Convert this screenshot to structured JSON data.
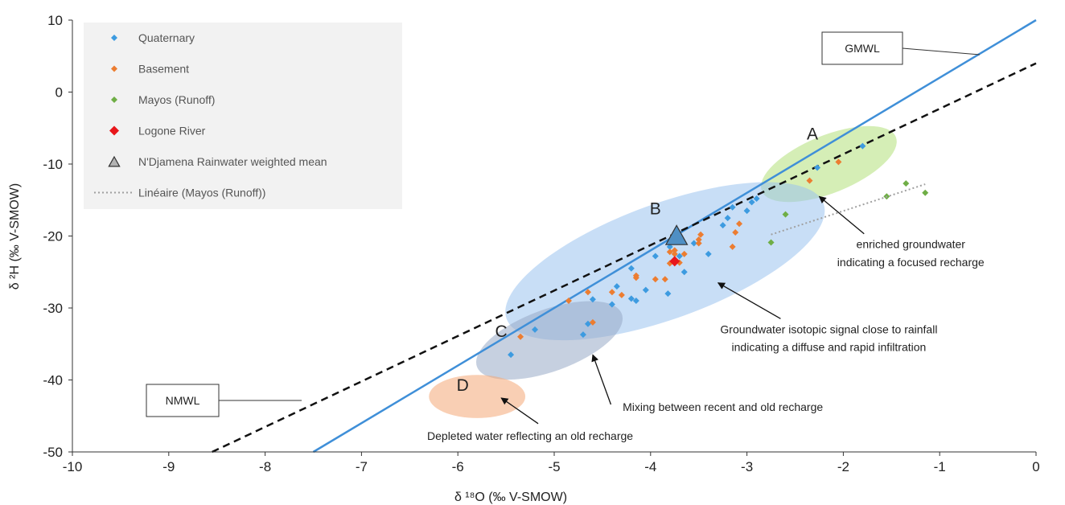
{
  "chart_data": {
    "type": "scatter",
    "title": "",
    "xlabel": "δ ¹⁸O (‰ V-SMOW)",
    "ylabel": "δ ²H (‰ V-SMOW)",
    "xlim": [
      -10,
      0
    ],
    "ylim": [
      -50,
      10
    ],
    "x_ticks": [
      "-10",
      "-9",
      "-8",
      "-7",
      "-6",
      "-5",
      "-4",
      "-3",
      "-2",
      "-1",
      "0"
    ],
    "y_ticks": [
      "10",
      "0",
      "-10",
      "-20",
      "-30",
      "-40",
      "-50"
    ],
    "grid": false,
    "legend_position": "top-left",
    "series": [
      {
        "name": "Quaternary",
        "color": "#3d9be0",
        "marker": "diamond",
        "points": [
          [
            -5.45,
            -36.5
          ],
          [
            -5.2,
            -33.0
          ],
          [
            -4.7,
            -33.7
          ],
          [
            -4.65,
            -32.2
          ],
          [
            -4.6,
            -28.8
          ],
          [
            -4.4,
            -29.5
          ],
          [
            -4.35,
            -27.0
          ],
          [
            -4.2,
            -28.7
          ],
          [
            -4.15,
            -29.0
          ],
          [
            -4.05,
            -27.5
          ],
          [
            -4.2,
            -24.5
          ],
          [
            -3.95,
            -22.8
          ],
          [
            -3.8,
            -21.5
          ],
          [
            -3.82,
            -28.0
          ],
          [
            -3.7,
            -22.8
          ],
          [
            -3.65,
            -25.0
          ],
          [
            -3.55,
            -21.0
          ],
          [
            -3.4,
            -22.5
          ],
          [
            -3.25,
            -18.5
          ],
          [
            -3.2,
            -17.5
          ],
          [
            -3.15,
            -16.0
          ],
          [
            -3.0,
            -16.5
          ],
          [
            -2.95,
            -15.3
          ],
          [
            -2.9,
            -14.8
          ],
          [
            -2.27,
            -10.5
          ],
          [
            -1.8,
            -7.5
          ]
        ]
      },
      {
        "name": "Basement",
        "color": "#ec7d31",
        "marker": "diamond",
        "points": [
          [
            -5.35,
            -34.0
          ],
          [
            -4.85,
            -29.0
          ],
          [
            -4.6,
            -32.0
          ],
          [
            -4.65,
            -27.8
          ],
          [
            -4.4,
            -27.8
          ],
          [
            -4.3,
            -28.2
          ],
          [
            -4.15,
            -25.8
          ],
          [
            -4.15,
            -25.5
          ],
          [
            -3.95,
            -26.0
          ],
          [
            -3.85,
            -26.0
          ],
          [
            -3.75,
            -22.5
          ],
          [
            -3.8,
            -23.8
          ],
          [
            -3.75,
            -22.0
          ],
          [
            -3.7,
            -23.7
          ],
          [
            -3.65,
            -22.5
          ],
          [
            -3.8,
            -22.2
          ],
          [
            -3.5,
            -20.5
          ],
          [
            -3.5,
            -21.0
          ],
          [
            -3.48,
            -19.8
          ],
          [
            -3.15,
            -21.5
          ],
          [
            -3.12,
            -19.5
          ],
          [
            -3.08,
            -18.3
          ],
          [
            -2.35,
            -12.3
          ],
          [
            -2.05,
            -9.7
          ]
        ]
      },
      {
        "name": "Mayos (Runoff)",
        "color": "#6fae46",
        "marker": "diamond",
        "points": [
          [
            -2.75,
            -20.9
          ],
          [
            -2.6,
            -17.0
          ],
          [
            -1.55,
            -14.5
          ],
          [
            -1.35,
            -12.7
          ],
          [
            -1.15,
            -14.0
          ]
        ]
      },
      {
        "name": "Logone River",
        "color": "#e8161b",
        "marker": "diamond",
        "points": [
          [
            -3.75,
            -23.5
          ]
        ]
      },
      {
        "name": "N'Djamena Rainwater  weighted mean",
        "color": "#4f8fc4",
        "marker": "triangle",
        "points": [
          [
            -3.73,
            -20.1
          ]
        ]
      },
      {
        "name": "Linéaire (Mayos (Runoff))",
        "color": "#a0a0a0",
        "marker": "dotted-line",
        "points": [
          [
            -2.75,
            -19.8
          ],
          [
            -1.15,
            -12.8
          ]
        ]
      }
    ],
    "lines": [
      {
        "label": "GMWL",
        "color": "#3f8fd8",
        "style": "solid",
        "points": [
          [
            -7.5,
            -50
          ],
          [
            0,
            10
          ]
        ]
      },
      {
        "label": "NMWL",
        "color": "#111111",
        "style": "dashed",
        "points": [
          [
            -8.55,
            -50
          ],
          [
            0,
            4
          ]
        ]
      }
    ],
    "regions": [
      {
        "label": "A",
        "color": "#b3e07a",
        "cx": -2.15,
        "cy": -10.0,
        "rx": 0.75,
        "ry": 4.0,
        "angle": -22
      },
      {
        "label": "B",
        "color": "#9ac3ee",
        "cx": -3.85,
        "cy": -23.5,
        "rx": 1.75,
        "ry": 8.0,
        "angle": -20
      },
      {
        "label": "C",
        "color": "#97a9c6",
        "cx": -5.05,
        "cy": -34.5,
        "rx": 0.8,
        "ry": 4.3,
        "angle": -20
      },
      {
        "label": "D",
        "color": "#f4a877",
        "cx": -5.8,
        "cy": -42.3,
        "rx": 0.5,
        "ry": 3.0,
        "angle": 0
      }
    ],
    "group_labels": [
      "A",
      "B",
      "C",
      "D"
    ],
    "annotations": [
      {
        "text": "enriched groundwater",
        "target": [
          -2.25,
          -14.5
        ],
        "text_at": [
          -1.3,
          -21.7
        ]
      },
      {
        "text": "indicating a focused recharge",
        "target": null,
        "text_at": [
          -1.3,
          -24.2
        ]
      },
      {
        "text": "Groundwater isotopic signal close to rainfall",
        "target": [
          -3.3,
          -26.5
        ],
        "text_at": [
          -2.15,
          -33.5
        ]
      },
      {
        "text": "indicating a diffuse and rapid infiltration",
        "target": null,
        "text_at": [
          -2.15,
          -36.0
        ]
      },
      {
        "text": "Mixing between recent and old recharge",
        "target": [
          -4.6,
          -36.5
        ],
        "text_at": [
          -3.25,
          -44.3
        ]
      },
      {
        "text": "Depleted water reflecting an old recharge",
        "target": [
          -5.55,
          -42.5
        ],
        "text_at": [
          -5.25,
          -48.3
        ]
      }
    ],
    "line_labels": [
      "GMWL",
      "NMWL"
    ]
  }
}
